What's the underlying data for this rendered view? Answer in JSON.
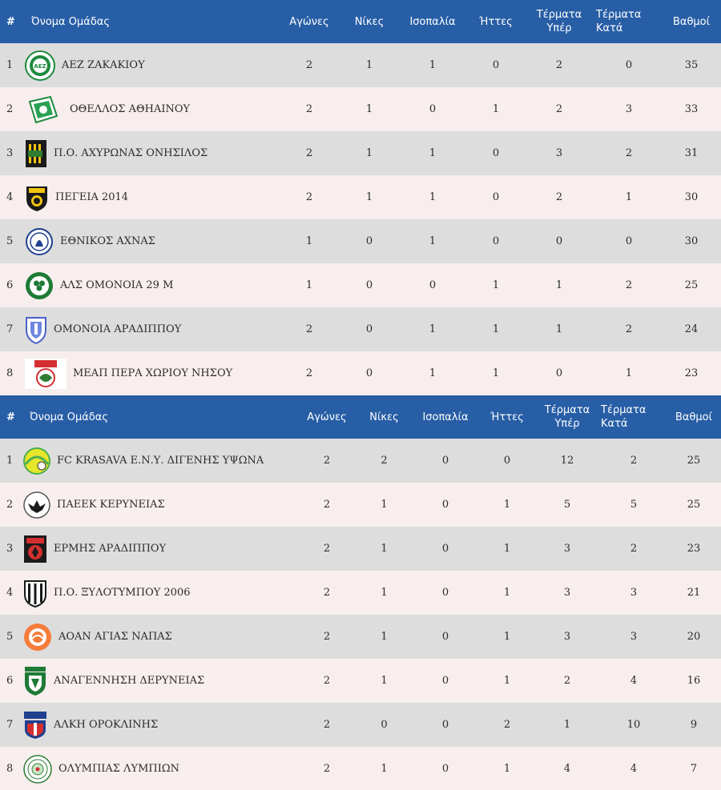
{
  "colors": {
    "header_bg": "#275ea6",
    "row_odd": "#dddddd",
    "row_even": "#f8eeee"
  },
  "headers": {
    "pos": "#",
    "team": "Όνομα Ομάδας",
    "played": "Αγώνες",
    "wins": "Νίκες",
    "draws": "Ισοπαλία",
    "losses": "Ήττες",
    "goals_for_1": "Τέρματα",
    "goals_for_2": "Υπέρ",
    "goals_against_1": "Τέρματα",
    "goals_against_2": "Κατά",
    "points": "Βαθμοί"
  },
  "tables": [
    {
      "rows": [
        {
          "pos": "1",
          "team": "ΑΕΖ ΖΑΚΑΚΙΟΥ",
          "logo": "aez-zakakiou-crest-icon",
          "played": "2",
          "wins": "1",
          "draws": "1",
          "losses": "0",
          "gf": "2",
          "ga": "0",
          "pts": "35"
        },
        {
          "pos": "2",
          "team": "ΟΘΕΛΛΟΣ ΑΘΗΑΙΝΟΥ",
          "logo": "othellos-athienou-crest-icon",
          "played": "2",
          "wins": "1",
          "draws": "0",
          "losses": "1",
          "gf": "2",
          "ga": "3",
          "pts": "33"
        },
        {
          "pos": "3",
          "team": "Π.Ο. ΑΧΥΡΩΝΑΣ ΟΝΗΣΙΛΟΣ",
          "logo": "achyronas-onisilos-crest-icon",
          "played": "2",
          "wins": "1",
          "draws": "1",
          "losses": "0",
          "gf": "3",
          "ga": "2",
          "pts": "31"
        },
        {
          "pos": "4",
          "team": "ΠΕΓΕΙΑ 2014",
          "logo": "pegeia-crest-icon",
          "played": "2",
          "wins": "1",
          "draws": "1",
          "losses": "0",
          "gf": "2",
          "ga": "1",
          "pts": "30"
        },
        {
          "pos": "5",
          "team": "ΕΘΝΙΚΟΣ ΑΧΝΑΣ",
          "logo": "ethnikos-achnas-crest-icon",
          "played": "1",
          "wins": "0",
          "draws": "1",
          "losses": "0",
          "gf": "0",
          "ga": "0",
          "pts": "30"
        },
        {
          "pos": "6",
          "team": "ΑΛΣ ΟΜΟΝΟΙΑ 29 Μ",
          "logo": "omonoia-29m-crest-icon",
          "played": "1",
          "wins": "0",
          "draws": "0",
          "losses": "1",
          "gf": "1",
          "ga": "2",
          "pts": "25"
        },
        {
          "pos": "7",
          "team": "ΟΜΟΝΟΙΑ ΑΡΑΔΙΠΠΟΥ",
          "logo": "omonoia-aradippou-crest-icon",
          "played": "2",
          "wins": "0",
          "draws": "1",
          "losses": "1",
          "gf": "1",
          "ga": "2",
          "pts": "24"
        },
        {
          "pos": "8",
          "team": "ΜΕΑΠ ΠΕΡΑ ΧΩΡΙΟΥ ΝΗΣΟΥ",
          "logo": "meap-crest-icon",
          "played": "2",
          "wins": "0",
          "draws": "1",
          "losses": "1",
          "gf": "0",
          "ga": "1",
          "pts": "23"
        }
      ]
    },
    {
      "rows": [
        {
          "pos": "1",
          "team": "FC KRASAVA Ε.Ν.Υ. ΔΙΓΕΝΗΣ ΥΨΩΝΑ",
          "logo": "krasava-crest-icon",
          "played": "2",
          "wins": "2",
          "draws": "0",
          "losses": "0",
          "gf": "12",
          "ga": "2",
          "pts": "25"
        },
        {
          "pos": "2",
          "team": "ΠΑΕΕΚ ΚΕΡΥΝΕΙΑΣ",
          "logo": "paeek-crest-icon",
          "played": "2",
          "wins": "1",
          "draws": "0",
          "losses": "1",
          "gf": "5",
          "ga": "5",
          "pts": "25"
        },
        {
          "pos": "3",
          "team": "ΕΡΜΗΣ ΑΡΑΔΙΠΠΟΥ",
          "logo": "ermis-aradippou-crest-icon",
          "played": "2",
          "wins": "1",
          "draws": "0",
          "losses": "1",
          "gf": "3",
          "ga": "2",
          "pts": "23"
        },
        {
          "pos": "4",
          "team": "Π.Ο. ΞΥΛΟΤΥΜΠΟΥ 2006",
          "logo": "xylotymbou-crest-icon",
          "played": "2",
          "wins": "1",
          "draws": "0",
          "losses": "1",
          "gf": "3",
          "ga": "3",
          "pts": "21"
        },
        {
          "pos": "5",
          "team": "ΑΟΑΝ ΑΓΙΑΣ ΝΑΠΑΣ",
          "logo": "aoan-agias-napas-crest-icon",
          "played": "2",
          "wins": "1",
          "draws": "0",
          "losses": "1",
          "gf": "3",
          "ga": "3",
          "pts": "20"
        },
        {
          "pos": "6",
          "team": "ΑΝΑΓΕΝΝΗΣΗ ΔΕΡΥΝΕΙΑΣ",
          "logo": "anagennisi-deryneias-crest-icon",
          "played": "2",
          "wins": "1",
          "draws": "0",
          "losses": "1",
          "gf": "2",
          "ga": "4",
          "pts": "16"
        },
        {
          "pos": "7",
          "team": "ΑΛΚΗ ΟΡΟΚΛΙΝΗΣ",
          "logo": "alki-oroklinis-crest-icon",
          "played": "2",
          "wins": "0",
          "draws": "0",
          "losses": "2",
          "gf": "1",
          "ga": "10",
          "pts": "9"
        },
        {
          "pos": "8",
          "team": "ΟΛΥΜΠΙΑΣ ΛΥΜΠΙΩΝ",
          "logo": "olympias-lympion-crest-icon",
          "played": "2",
          "wins": "1",
          "draws": "0",
          "losses": "1",
          "gf": "4",
          "ga": "4",
          "pts": "7"
        }
      ]
    }
  ]
}
